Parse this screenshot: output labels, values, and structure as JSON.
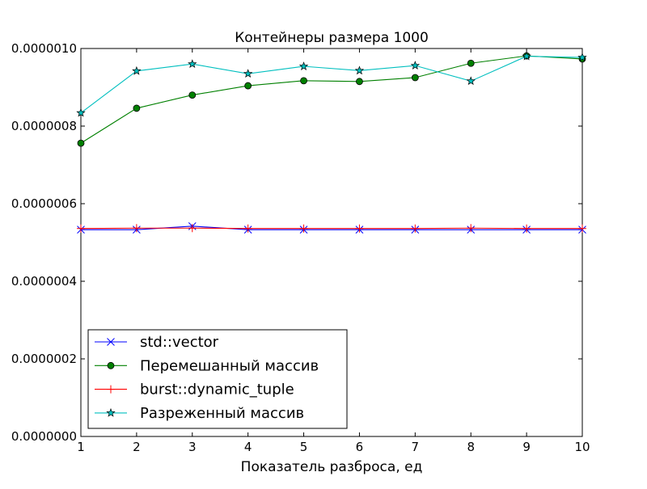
{
  "chart_data": {
    "type": "line",
    "title": "Контейнеры размера 1000",
    "xlabel": "Показатель разброса, ед",
    "ylabel": "",
    "xlim": [
      1,
      10
    ],
    "ylim": [
      0.0,
      1e-06
    ],
    "x": [
      1,
      2,
      3,
      4,
      5,
      6,
      7,
      8,
      9,
      10
    ],
    "x_tick_labels": [
      "1",
      "2",
      "3",
      "4",
      "5",
      "6",
      "7",
      "8",
      "9",
      "10"
    ],
    "y_ticks": [
      0.0,
      2e-07,
      4e-07,
      6e-07,
      8e-07,
      1e-06
    ],
    "y_tick_labels": [
      "0.0000000",
      "0.0000002",
      "0.0000004",
      "0.0000006",
      "0.0000008",
      "0.0000010"
    ],
    "grid": false,
    "legend_position": "lower-left",
    "series": [
      {
        "name": "std::vector",
        "color": "#0000ff",
        "marker": "x",
        "values": [
          5.33e-07,
          5.33e-07,
          5.42e-07,
          5.33e-07,
          5.33e-07,
          5.33e-07,
          5.33e-07,
          5.33e-07,
          5.33e-07,
          5.33e-07
        ]
      },
      {
        "name": "Перемешанный массив",
        "color": "#008000",
        "marker": "circle",
        "values": [
          7.56e-07,
          8.46e-07,
          8.8e-07,
          9.04e-07,
          9.17e-07,
          9.15e-07,
          9.25e-07,
          9.62e-07,
          9.81e-07,
          9.73e-07
        ]
      },
      {
        "name": "burst::dynamic_tuple",
        "color": "#ff0000",
        "marker": "plus",
        "values": [
          5.36e-07,
          5.37e-07,
          5.37e-07,
          5.36e-07,
          5.36e-07,
          5.36e-07,
          5.36e-07,
          5.37e-07,
          5.36e-07,
          5.36e-07
        ]
      },
      {
        "name": "Разреженный массив",
        "color": "#00bfbf",
        "marker": "star",
        "values": [
          8.34e-07,
          9.42e-07,
          9.6e-07,
          9.35e-07,
          9.54e-07,
          9.43e-07,
          9.56e-07,
          9.16e-07,
          9.8e-07,
          9.77e-07
        ]
      }
    ]
  }
}
